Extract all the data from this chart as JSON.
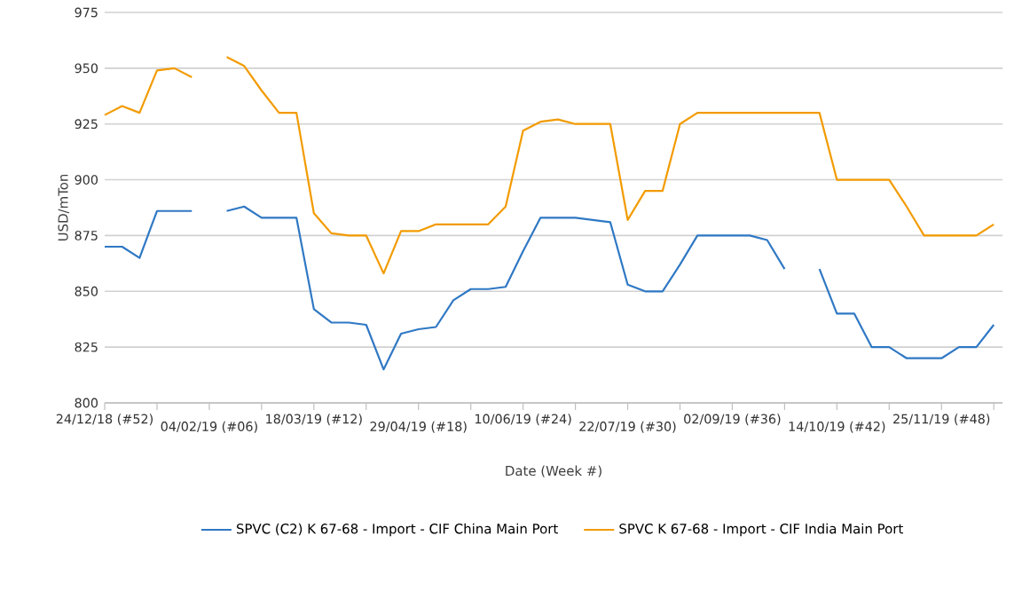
{
  "chart_data": {
    "type": "line",
    "xlabel": "Date (Week #)",
    "ylabel": "USD/mTon",
    "categories": [
      "24/12/18 (#52)",
      null,
      null,
      null,
      null,
      null,
      "04/02/19 (#06)",
      null,
      null,
      null,
      null,
      null,
      "18/03/19 (#12)",
      null,
      null,
      null,
      null,
      null,
      "29/04/19 (#18)",
      null,
      null,
      null,
      null,
      null,
      "10/06/19 (#24)",
      null,
      null,
      null,
      null,
      null,
      "22/07/19 (#30)",
      null,
      null,
      null,
      null,
      null,
      "02/09/19 (#36)",
      null,
      null,
      null,
      null,
      null,
      "14/10/19 (#42)",
      null,
      null,
      null,
      null,
      null,
      "25/11/19 (#48)",
      null,
      null,
      null
    ],
    "series": [
      {
        "name": "SPVC (C2) K 67-68 - Import - CIF China Main Port",
        "color": "#2f78c4",
        "values": [
          870,
          870,
          865,
          886,
          886,
          886,
          null,
          886,
          888,
          883,
          883,
          883,
          842,
          836,
          836,
          835,
          815,
          831,
          833,
          834,
          846,
          851,
          851,
          852,
          868,
          883,
          883,
          883,
          882,
          881,
          853,
          850,
          850,
          862,
          875,
          875,
          875,
          875,
          873,
          860,
          null,
          860,
          840,
          840,
          825,
          825,
          820,
          820,
          820,
          825,
          825,
          835
        ]
      },
      {
        "name": "SPVC K 67-68 - Import - CIF India Main Port",
        "color": "#f29b00",
        "values": [
          929,
          933,
          930,
          949,
          950,
          946,
          null,
          955,
          951,
          940,
          930,
          930,
          885,
          876,
          875,
          875,
          858,
          877,
          877,
          880,
          880,
          880,
          880,
          888,
          922,
          926,
          927,
          925,
          925,
          925,
          882,
          895,
          895,
          925,
          930,
          930,
          930,
          930,
          930,
          930,
          930,
          930,
          900,
          900,
          900,
          900,
          888,
          875,
          875,
          875,
          875,
          880
        ]
      }
    ],
    "ylim": [
      800,
      975
    ],
    "yticks": [
      800,
      825,
      850,
      875,
      900,
      925,
      950,
      975
    ],
    "grid": "y",
    "legend": "bottom",
    "marker": "none",
    "line_style": "solid"
  }
}
